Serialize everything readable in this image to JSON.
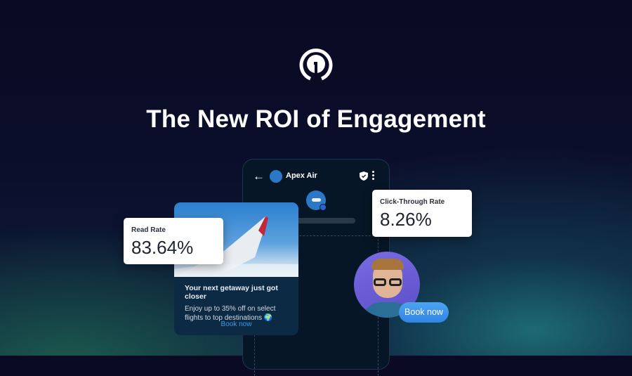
{
  "headline": "The New ROI of Engagement",
  "logo": "brand-logo-icon",
  "chat": {
    "sender": "Apex Air",
    "back_icon": "arrow-left-icon",
    "verified_icon": "shield-check-icon",
    "menu_icon": "more-vertical-icon"
  },
  "read_rate": {
    "label": "Read Rate",
    "value": "83.64%"
  },
  "ctr": {
    "label": "Click-Through Rate",
    "value": "8.26%"
  },
  "ad": {
    "title": "Your next getaway just got closer",
    "body_line1": "Enjoy up to 35% off on select",
    "body_line2": "flights to top destinations 🌍",
    "cta": "Book now"
  },
  "reply": {
    "label": "Book now"
  },
  "colors": {
    "accent": "#3a8fe8",
    "avatar_bg": "#6b5fd6",
    "card_bg": "#0d2a45"
  }
}
